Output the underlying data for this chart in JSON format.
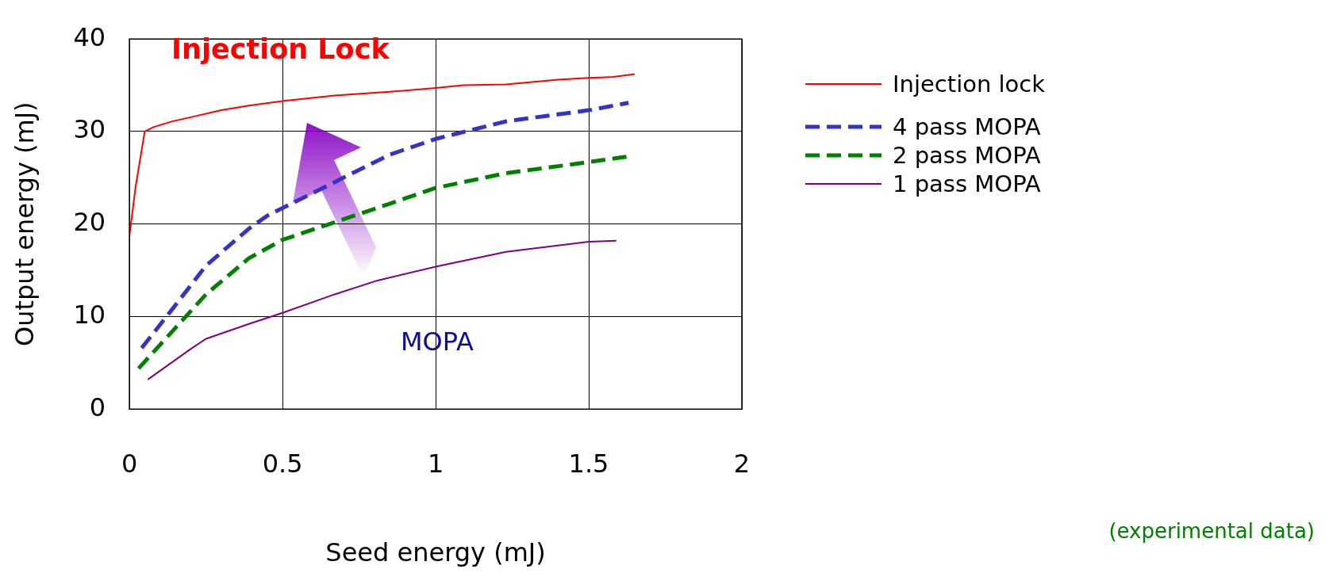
{
  "chart_data": {
    "type": "line",
    "xlabel": "Seed energy (mJ)",
    "ylabel": "Output energy (mJ)",
    "xlim": [
      0,
      2
    ],
    "xticks": [
      0,
      0.5,
      1,
      1.5,
      2
    ],
    "ylim": [
      0,
      40
    ],
    "yticks": [
      0,
      10,
      20,
      30,
      40
    ],
    "grid": true,
    "legend": "right",
    "marker": "none",
    "series": [
      {
        "name": "Injection lock",
        "color": "#ff0000",
        "line_style": "solid",
        "x": [
          0,
          0.02,
          0.05,
          0.08,
          0.14,
          0.22,
          0.3,
          0.39,
          0.5,
          0.67,
          0.85,
          1.0,
          1.09,
          1.23,
          1.4,
          1.5,
          1.58,
          1.65
        ],
        "values": [
          18.7,
          24,
          30,
          30.5,
          31.1,
          31.7,
          32.3,
          32.8,
          33.3,
          33.9,
          34.3,
          34.7,
          35,
          35.1,
          35.6,
          35.8,
          35.9,
          36.2
        ]
      },
      {
        "name": "4 pass MOPA",
        "color": "#3333cc",
        "line_style": "dashed",
        "x": [
          0.04,
          0.14,
          0.25,
          0.39,
          0.45,
          0.85,
          1.0,
          1.23,
          1.5,
          1.63
        ],
        "values": [
          6.6,
          10.8,
          15.5,
          19.5,
          20.9,
          27.5,
          29.2,
          31.1,
          32.3,
          33.1
        ]
      },
      {
        "name": "2 pass MOPA",
        "color": "#008000",
        "line_style": "dashed",
        "x": [
          0.03,
          0.14,
          0.25,
          0.39,
          0.5,
          0.85,
          1.0,
          1.23,
          1.5,
          1.63
        ],
        "values": [
          4.4,
          8.4,
          12.4,
          16.3,
          18.3,
          22.2,
          23.9,
          25.5,
          26.7,
          27.3
        ]
      },
      {
        "name": "1 pass MOPA",
        "color": "#800080",
        "line_style": "solid",
        "x": [
          0.06,
          0.2,
          0.25,
          0.39,
          0.5,
          0.67,
          0.81,
          1.0,
          1.23,
          1.5,
          1.59
        ],
        "values": [
          3.2,
          6.5,
          7.6,
          9.2,
          10.4,
          12.4,
          13.9,
          15.4,
          17,
          18.1,
          18.2
        ]
      }
    ],
    "annotations": [
      "Injection Lock",
      "MOPA",
      "(experimental data)"
    ]
  }
}
